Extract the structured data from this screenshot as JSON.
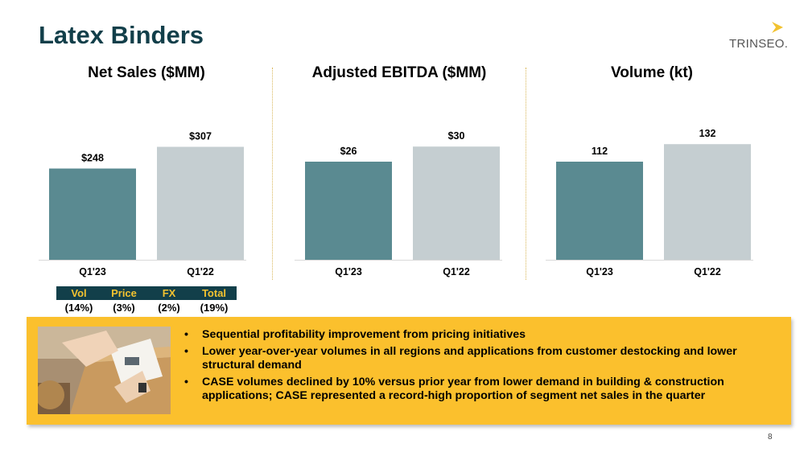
{
  "slide": {
    "title": "Latex Binders",
    "page_number": "8"
  },
  "logo": {
    "text": "TRINSEO.",
    "icon": "chevron-icon",
    "accent_color": "#f2c230"
  },
  "colors": {
    "bar_current": "#5a8a91",
    "bar_prior": "#c5ced1",
    "box": "#fbc02d",
    "dark": "#123f4a"
  },
  "chart_data": [
    {
      "type": "bar",
      "title": "Net Sales ($MM)",
      "categories": [
        "Q1'23",
        "Q1'22"
      ],
      "values": [
        248,
        307
      ],
      "labels": [
        "$248",
        "$307"
      ],
      "ylim": [
        0,
        400
      ]
    },
    {
      "type": "bar",
      "title": "Adjusted EBITDA ($MM)",
      "categories": [
        "Q1'23",
        "Q1'22"
      ],
      "values": [
        26,
        30
      ],
      "labels": [
        "$26",
        "$30"
      ],
      "ylim": [
        0,
        39
      ]
    },
    {
      "type": "bar",
      "title": "Volume (kt)",
      "categories": [
        "Q1'23",
        "Q1'22"
      ],
      "values": [
        112,
        132
      ],
      "labels": [
        "112",
        "132"
      ],
      "ylim": [
        0,
        168
      ]
    }
  ],
  "bridge": {
    "headers": [
      "Vol",
      "Price",
      "FX",
      "Total"
    ],
    "values": [
      "(14%)",
      "(3%)",
      "(2%)",
      "(19%)"
    ]
  },
  "bullets": [
    "Sequential profitability improvement from pricing initiatives",
    "Lower year-over-year volumes in all regions and applications from customer destocking and lower structural demand",
    "CASE volumes declined by 10% versus prior year from lower demand in building & construction applications; CASE represented a record-high proportion of segment net sales in the quarter"
  ]
}
